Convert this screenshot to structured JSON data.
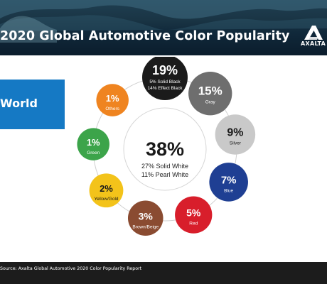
{
  "header": {
    "title": "2020 Global Automotive Color Popularity",
    "logo_text": "AXALTA"
  },
  "region": {
    "label": "World"
  },
  "footer": {
    "source": "Source: Axalta Global Automotive 2020 Color Popularity Report"
  },
  "chart_data": {
    "type": "pie",
    "center": {
      "value_label": "38%",
      "lines": [
        "27% Solid White",
        "11% Pearl White"
      ],
      "category": "White",
      "value": 38
    },
    "categories": [
      "Black",
      "Gray",
      "Silver",
      "Blue",
      "Red",
      "Brown/Beige",
      "Yellow/Gold",
      "Green",
      "Others"
    ],
    "values": [
      19,
      15,
      9,
      7,
      5,
      3,
      2,
      1,
      1
    ],
    "slices": [
      {
        "value_label": "19%",
        "sublines": [
          "5% Solid Black",
          "14% Effect Black"
        ],
        "color": "#1b1b1b"
      },
      {
        "value_label": "15%",
        "sublines": [
          "Gray"
        ],
        "color": "#6e6e6e"
      },
      {
        "value_label": "9%",
        "sublines": [
          "Silver"
        ],
        "color": "#c9c9c9"
      },
      {
        "value_label": "7%",
        "sublines": [
          "Blue"
        ],
        "color": "#1f3f93"
      },
      {
        "value_label": "5%",
        "sublines": [
          "Red"
        ],
        "color": "#d81e2b"
      },
      {
        "value_label": "3%",
        "sublines": [
          "Brown/Beige"
        ],
        "color": "#8a4b31"
      },
      {
        "value_label": "2%",
        "sublines": [
          "Yellow/Gold"
        ],
        "color": "#f3c31a"
      },
      {
        "value_label": "1%",
        "sublines": [
          "Green"
        ],
        "color": "#3ca44a"
      },
      {
        "value_label": "1%",
        "sublines": [
          "Others"
        ],
        "color": "#ef8420"
      }
    ]
  }
}
